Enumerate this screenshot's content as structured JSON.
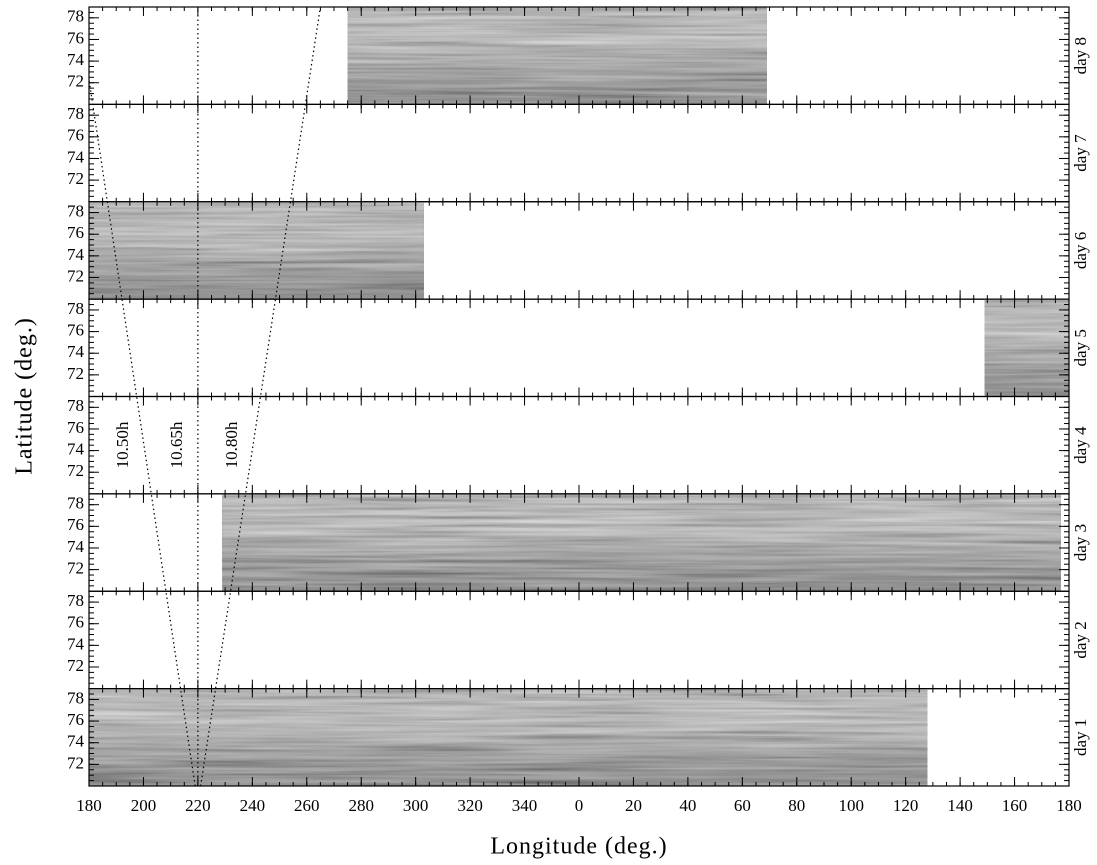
{
  "chart_data": {
    "type": "strip-panels",
    "xlabel": "Longitude (deg.)",
    "ylabel": "Latitude (deg.)",
    "xlim": [
      180,
      540
    ],
    "xticks": [
      180,
      200,
      220,
      240,
      260,
      280,
      300,
      320,
      340,
      {
        "value": 360,
        "label": "0"
      },
      {
        "value": 380,
        "label": "20"
      },
      {
        "value": 400,
        "label": "40"
      },
      {
        "value": 420,
        "label": "60"
      },
      {
        "value": 440,
        "label": "80"
      },
      {
        "value": 460,
        "label": "100"
      },
      {
        "value": 480,
        "label": "120"
      },
      {
        "value": 500,
        "label": "140"
      },
      {
        "value": 520,
        "label": "160"
      },
      {
        "value": 540,
        "label": "180"
      }
    ],
    "x_minor_step": 5,
    "ylim": [
      70,
      79
    ],
    "yticks": [
      72,
      74,
      76,
      78
    ],
    "y_minor_step": 0.5,
    "panels": [
      {
        "label": "day 8",
        "coverage": [
          275,
          429
        ]
      },
      {
        "label": "day 7"
      },
      {
        "label": "day 6",
        "coverage": [
          180,
          303
        ]
      },
      {
        "label": "day 5",
        "coverage": [
          509,
          540
        ]
      },
      {
        "label": "day 4"
      },
      {
        "label": "day 3",
        "coverage": [
          229,
          537
        ]
      },
      {
        "label": "day 2"
      },
      {
        "label": "day 1",
        "coverage": [
          180,
          488
        ]
      }
    ],
    "guides": [
      {
        "label": "10.50h",
        "lon_bottom": 219,
        "lon_top": 176
      },
      {
        "label": "10.65h",
        "lon_bottom": 220,
        "lon_top": 220
      },
      {
        "label": "10.80h",
        "lon_bottom": 221,
        "lon_top": 265
      }
    ]
  }
}
